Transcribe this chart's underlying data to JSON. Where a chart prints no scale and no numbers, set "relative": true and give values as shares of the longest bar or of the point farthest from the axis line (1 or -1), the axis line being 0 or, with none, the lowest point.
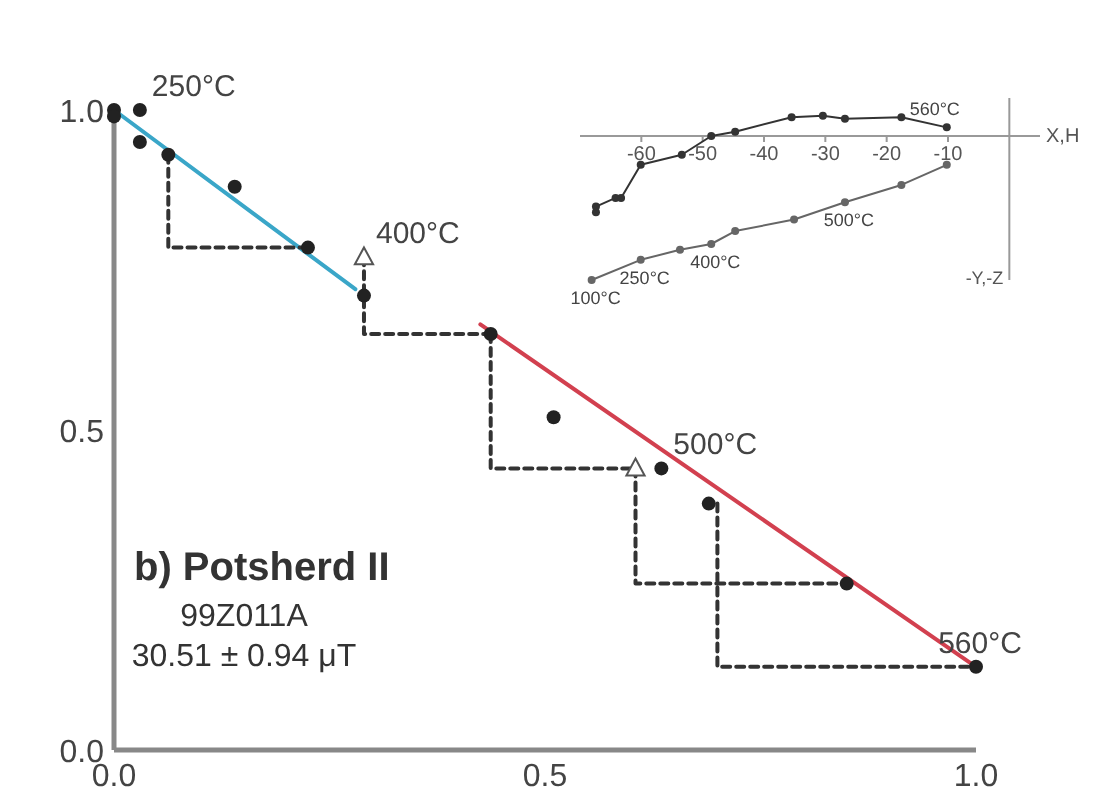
{
  "chart_data": [
    {
      "type": "scatter",
      "title": "b) Potsherd II",
      "annotations": [
        "99Z011A",
        "30.51 ± 0.94 μT",
        {
          "text": "250°C",
          "x": 0.03,
          "y": 1.0
        },
        {
          "text": "400°C",
          "x": 0.29,
          "y": 0.77
        },
        {
          "text": "500°C",
          "x": 0.635,
          "y": 0.44
        },
        {
          "text": "560°C",
          "x": 1.0,
          "y": 0.13
        }
      ],
      "xlim": [
        0,
        1
      ],
      "ylim": [
        0,
        1
      ],
      "xticks": [
        {
          "value": 0,
          "label": "0.0"
        },
        {
          "value": 0.5,
          "label": "0.5"
        },
        {
          "value": 1,
          "label": "1.0"
        }
      ],
      "yticks": [
        {
          "value": 0,
          "label": "0.0"
        },
        {
          "value": 0.5,
          "label": "0.5"
        },
        {
          "value": 1,
          "label": "1.0"
        }
      ],
      "grid": false,
      "marker": "circle",
      "series": [
        {
          "type": "line",
          "marker": "none",
          "color": "#3aa6c8",
          "x": [
            0,
            0.28
          ],
          "values": [
            1.0,
            0.72
          ]
        },
        {
          "type": "line",
          "marker": "none",
          "color": "#d2404f",
          "x": [
            0.425,
            1.0
          ],
          "values": [
            0.665,
            0.13
          ]
        },
        {
          "type": "line",
          "marker": "none",
          "color": "#333333",
          "line_style": "dashed",
          "x": [
            0.063,
            0.063,
            0.225,
            null,
            0.29,
            0.29,
            0.437,
            null,
            0.437,
            0.437,
            0.605,
            null,
            0.605,
            0.605,
            0.85,
            null,
            0.7,
            0.7,
            1.0
          ],
          "values": [
            0.93,
            0.785,
            0.785,
            null,
            0.77,
            0.65,
            0.65,
            null,
            0.65,
            0.44,
            0.44,
            null,
            0.44,
            0.26,
            0.26,
            null,
            0.385,
            0.13,
            0.13
          ]
        },
        {
          "color": "#222222",
          "x": [
            0,
            0,
            0.03,
            0.03,
            0.063,
            0.14,
            0.225,
            0.29,
            0.437,
            0.51,
            0.635,
            0.69,
            0.85,
            1.0
          ],
          "values": [
            1.0,
            0.99,
            1.0,
            0.95,
            0.93,
            0.88,
            0.785,
            0.71,
            0.65,
            0.52,
            0.44,
            0.385,
            0.26,
            0.13
          ]
        },
        {
          "color": "#555555",
          "marker": "triangle",
          "x": [
            0.29,
            0.605
          ],
          "values": [
            0.77,
            0.44
          ]
        }
      ]
    },
    {
      "type": "line",
      "relative": true,
      "xlabel": "X,H",
      "ylabel": "-Y,-Z",
      "annotations": [
        {
          "text": "560°C",
          "x": -10.2,
          "y": 0.06
        },
        {
          "text": "250°C",
          "x": -60.1,
          "y": -0.86
        },
        {
          "text": "400°C",
          "x": -48.6,
          "y": -0.75
        },
        {
          "text": "500°C",
          "x": -26.8,
          "y": -0.46
        },
        {
          "text": "100°C",
          "x": -68.1,
          "y": -1
        }
      ],
      "xlim": [
        -70,
        5
      ],
      "xticks": [
        -60,
        -50,
        -40,
        -30,
        -20,
        -10
      ],
      "tick_labels": "x",
      "grid": false,
      "marker": "circle",
      "series": [
        {
          "color": "#333333",
          "x": [
            -67.4,
            -67.4,
            -64.2,
            -63.3,
            -60.1,
            -53.4,
            -48.6,
            -44.7,
            -35.5,
            -30.4,
            -26.8,
            -17.6,
            -10.2
          ],
          "values": [
            -0.53,
            -0.49,
            -0.43,
            -0.43,
            -0.2,
            -0.13,
            0,
            0.03,
            0.13,
            0.14,
            0.12,
            0.13,
            0.06
          ]
        },
        {
          "color": "#666666",
          "x": [
            -68.1,
            -60.1,
            -53.7,
            -48.6,
            -44.7,
            -35.1,
            -26.8,
            -17.6,
            -10.2
          ],
          "values": [
            -1,
            -0.86,
            -0.79,
            -0.75,
            -0.66,
            -0.58,
            -0.46,
            -0.34,
            -0.2
          ]
        }
      ]
    }
  ]
}
